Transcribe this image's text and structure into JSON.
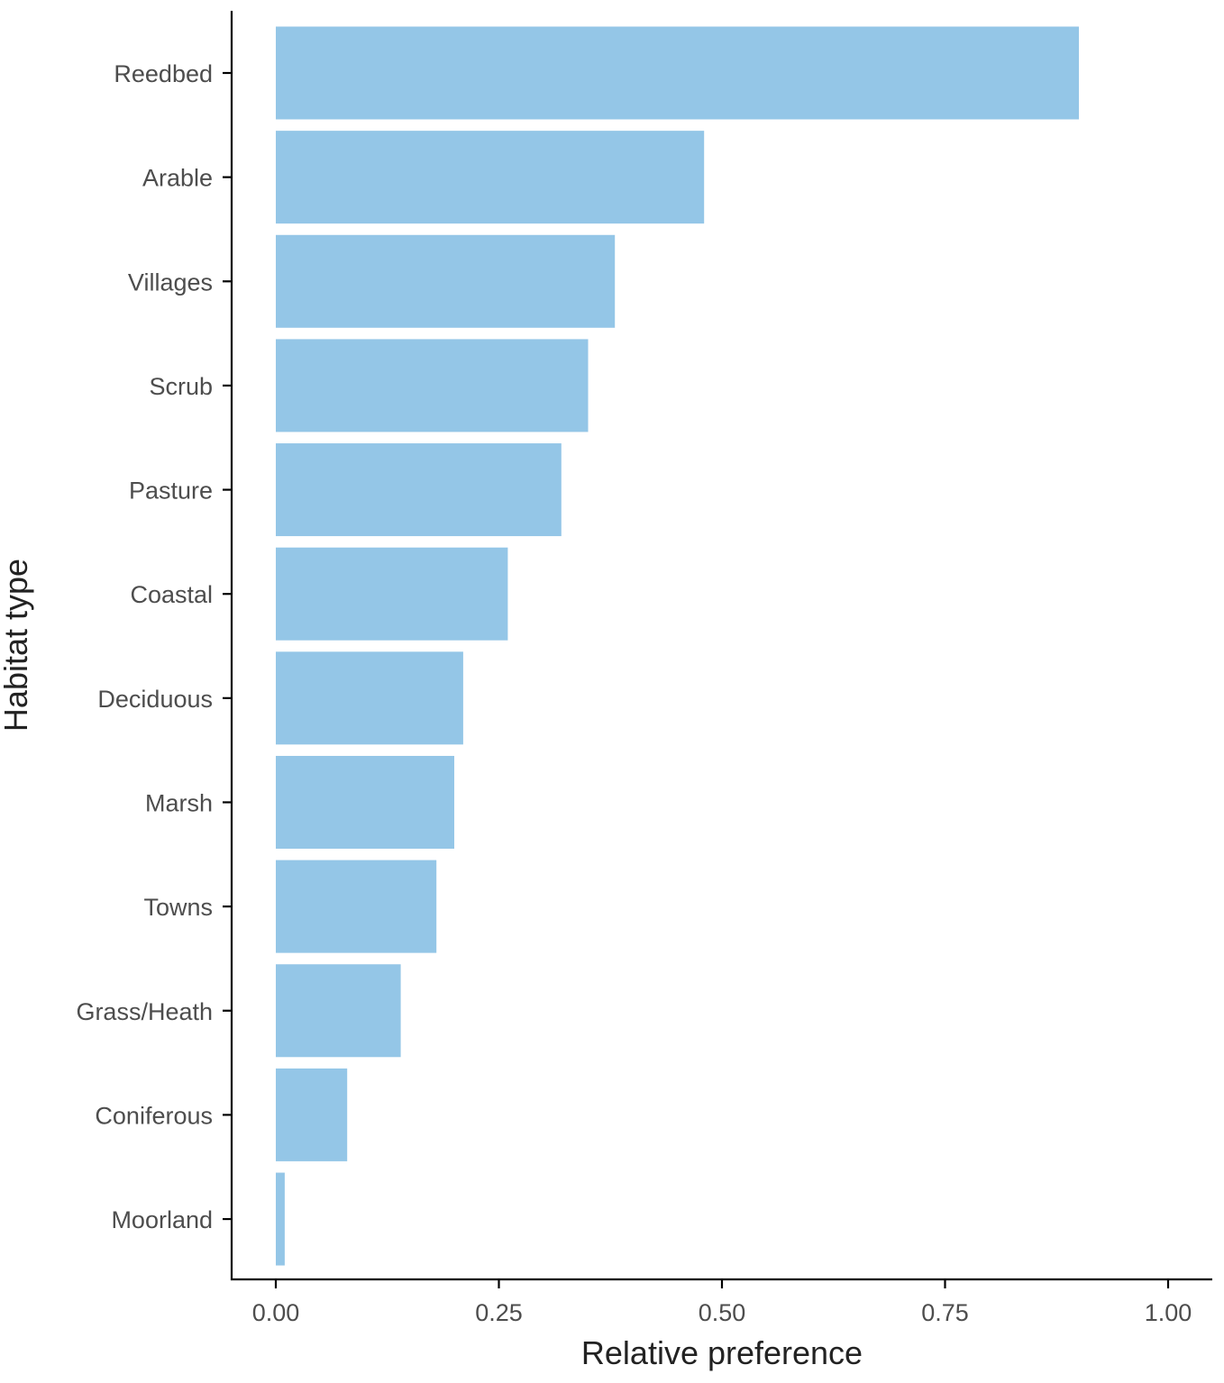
{
  "chart_data": {
    "type": "bar",
    "orientation": "horizontal",
    "title": "",
    "xlabel": "Relative preference",
    "ylabel": "Habitat type",
    "categories": [
      "Reedbed",
      "Arable",
      "Villages",
      "Scrub",
      "Pasture",
      "Coastal",
      "Deciduous",
      "Marsh",
      "Towns",
      "Grass/Heath",
      "Coniferous",
      "Moorland"
    ],
    "values": [
      0.9,
      0.48,
      0.38,
      0.35,
      0.32,
      0.26,
      0.21,
      0.2,
      0.18,
      0.14,
      0.08,
      0.01
    ],
    "xlim": [
      -0.05,
      1.05
    ],
    "xticks": [
      0,
      0.25,
      0.5,
      0.75,
      1.0
    ],
    "xtick_labels": [
      "0.00",
      "0.25",
      "0.50",
      "0.75",
      "1.00"
    ],
    "bar_color": "#94c6e7",
    "grid": false,
    "legend": "none"
  }
}
